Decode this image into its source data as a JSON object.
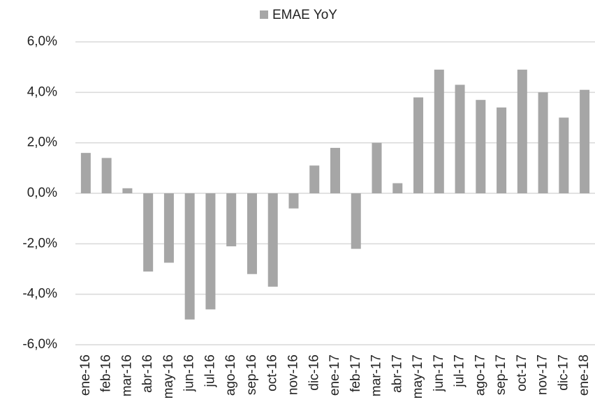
{
  "chart_data": {
    "type": "bar",
    "categories": [
      "ene-16",
      "feb-16",
      "mar-16",
      "abr-16",
      "may-16",
      "jun-16",
      "jul-16",
      "ago-16",
      "sep-16",
      "oct-16",
      "nov-16",
      "dic-16",
      "ene-17",
      "feb-17",
      "mar-17",
      "abr-17",
      "may-17",
      "jun-17",
      "jul-17",
      "ago-17",
      "sep-17",
      "oct-17",
      "nov-17",
      "dic-17",
      "ene-18"
    ],
    "series": [
      {
        "name": "EMAE YoY",
        "color": "#a6a6a6",
        "values": [
          1.6,
          1.4,
          0.2,
          -3.1,
          -2.75,
          -5.0,
          -4.6,
          -2.1,
          -3.2,
          -3.7,
          -0.6,
          1.1,
          1.8,
          -2.2,
          2.0,
          0.4,
          3.8,
          4.9,
          4.3,
          3.7,
          3.4,
          4.9,
          4.0,
          3.0,
          4.1
        ]
      }
    ],
    "ylim": [
      -6,
      6
    ],
    "yticks": [
      {
        "value": -6,
        "label": "-6,0%"
      },
      {
        "value": -4,
        "label": "-4,0%"
      },
      {
        "value": -2,
        "label": "-2,0%"
      },
      {
        "value": 0,
        "label": "0,0%"
      },
      {
        "value": 2,
        "label": "2,0%"
      },
      {
        "value": 4,
        "label": "4,0%"
      },
      {
        "value": 6,
        "label": "6,0%"
      }
    ],
    "grid": true,
    "legend": "top"
  }
}
